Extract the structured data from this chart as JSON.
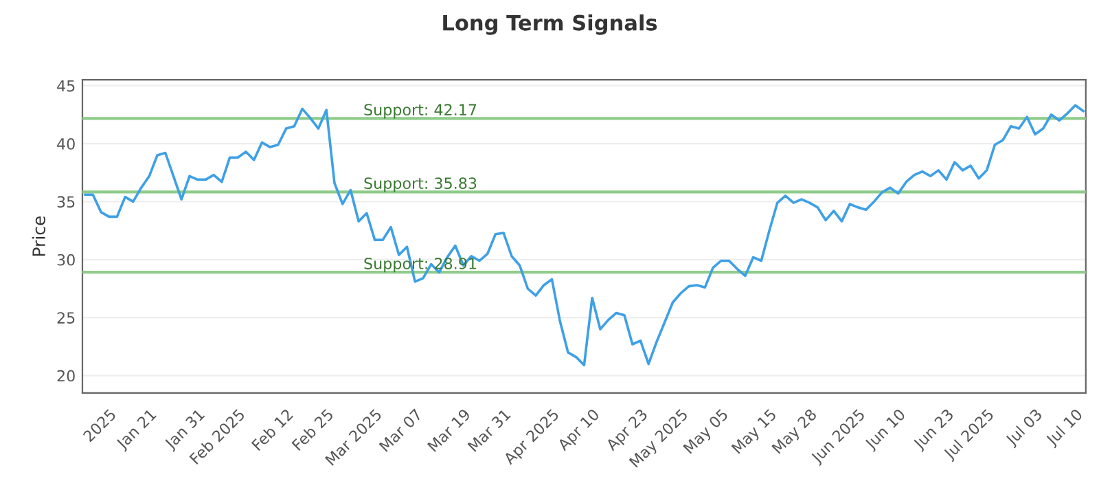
{
  "chart_data": {
    "type": "line",
    "title": "Long Term Signals",
    "ylabel": "Price",
    "categories": [
      null,
      null,
      null,
      "2025",
      null,
      null,
      null,
      null,
      "Jan 21",
      null,
      null,
      null,
      null,
      null,
      "Jan 31",
      null,
      null,
      null,
      null,
      "Feb 2025",
      null,
      null,
      null,
      null,
      null,
      "Feb 12",
      null,
      null,
      null,
      null,
      "Feb 25",
      null,
      null,
      null,
      null,
      null,
      "Mar 2025",
      null,
      null,
      null,
      null,
      "Mar 07",
      null,
      null,
      null,
      null,
      null,
      "Mar 19",
      null,
      null,
      null,
      null,
      "Mar 31",
      null,
      null,
      null,
      null,
      null,
      "Apr 2025",
      null,
      null,
      null,
      null,
      "Apr 10",
      null,
      null,
      null,
      null,
      null,
      "Apr 23",
      null,
      null,
      null,
      null,
      "May 2025",
      null,
      null,
      null,
      null,
      "May 05",
      null,
      null,
      null,
      null,
      null,
      "May 15",
      null,
      null,
      null,
      null,
      "May 28",
      null,
      null,
      null,
      null,
      null,
      "Jun 2025",
      null,
      null,
      null,
      null,
      "Jun 10",
      null,
      null,
      null,
      null,
      null,
      "Jun 23",
      null,
      null,
      null,
      null,
      "Jul 2025",
      null,
      null,
      null,
      null,
      null,
      "Jul 03",
      null,
      null,
      null,
      null,
      "Jul 10",
      null
    ],
    "series": [
      {
        "color": "#3ea0e6",
        "values": [
          35.6,
          35.6,
          34.1,
          33.7,
          33.7,
          35.4,
          35.0,
          36.2,
          37.2,
          39.0,
          39.2,
          37.2,
          35.2,
          37.2,
          36.9,
          36.9,
          37.3,
          36.7,
          38.8,
          38.8,
          39.3,
          38.6,
          40.1,
          39.7,
          39.9,
          41.3,
          41.5,
          43.0,
          42.2,
          41.3,
          42.9,
          36.6,
          34.8,
          36.0,
          33.3,
          34.0,
          31.7,
          31.7,
          32.8,
          30.4,
          31.1,
          28.1,
          28.4,
          29.6,
          28.9,
          30.2,
          31.2,
          29.5,
          30.3,
          29.9,
          30.5,
          32.2,
          32.3,
          30.3,
          29.5,
          27.5,
          26.9,
          27.8,
          28.3,
          24.7,
          22.0,
          21.6,
          20.9,
          26.7,
          24.0,
          24.8,
          25.4,
          25.2,
          22.7,
          23.0,
          21.0,
          22.9,
          24.6,
          26.3,
          27.1,
          27.7,
          27.8,
          27.6,
          29.3,
          29.9,
          29.9,
          29.2,
          28.6,
          30.2,
          29.9,
          32.5,
          34.9,
          35.5,
          34.9,
          35.2,
          34.9,
          34.5,
          33.4,
          34.2,
          33.3,
          34.8,
          34.5,
          34.3,
          35.0,
          35.8,
          36.2,
          35.7,
          36.7,
          37.3,
          37.6,
          37.2,
          37.7,
          36.9,
          38.4,
          37.7,
          38.1,
          37.0,
          37.7,
          39.9,
          40.3,
          41.5,
          41.3,
          42.3,
          40.8,
          41.3,
          42.5,
          42.0,
          42.6,
          43.3,
          42.8
        ]
      }
    ],
    "ylim": [
      18.5,
      45.5
    ],
    "yticks": [
      20,
      25,
      30,
      35,
      40,
      45
    ],
    "grid": "y",
    "marker": "none",
    "line_style": "solid",
    "legend": false,
    "ref_lines": [
      {
        "axis": "y",
        "value": 42.17,
        "label": "Support: 42.17",
        "color": "#8fcc8a"
      },
      {
        "axis": "y",
        "value": 35.83,
        "label": "Support: 35.83",
        "color": "#8fcc8a"
      },
      {
        "axis": "y",
        "value": 28.91,
        "label": "Support: 28.91",
        "color": "#8fcc8a"
      }
    ]
  }
}
